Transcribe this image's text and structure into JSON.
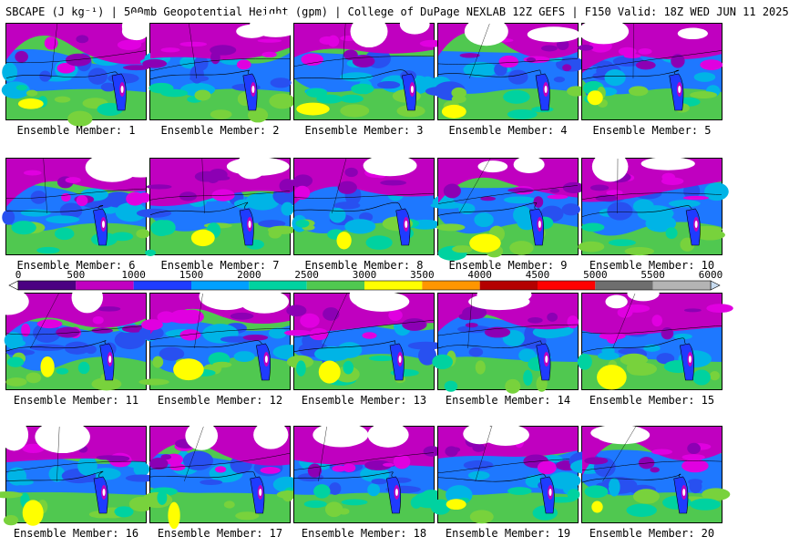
{
  "title": "SBCAPE (J kg⁻¹) | 500mb Geopotential Height (gpm) | College of DuPage NEXLAB 12Z GEFS | F150 Valid: 18Z WED JUN 11 2025",
  "members": [
    {
      "label": "Ensemble Member: 1"
    },
    {
      "label": "Ensemble Member: 2"
    },
    {
      "label": "Ensemble Member: 3"
    },
    {
      "label": "Ensemble Member: 4"
    },
    {
      "label": "Ensemble Member: 5"
    },
    {
      "label": "Ensemble Member: 6"
    },
    {
      "label": "Ensemble Member: 7"
    },
    {
      "label": "Ensemble Member: 8"
    },
    {
      "label": "Ensemble Member: 9"
    },
    {
      "label": "Ensemble Member: 10"
    },
    {
      "label": "Ensemble Member: 11"
    },
    {
      "label": "Ensemble Member: 12"
    },
    {
      "label": "Ensemble Member: 13"
    },
    {
      "label": "Ensemble Member: 14"
    },
    {
      "label": "Ensemble Member: 15"
    },
    {
      "label": "Ensemble Member: 16"
    },
    {
      "label": "Ensemble Member: 17"
    },
    {
      "label": "Ensemble Member: 18"
    },
    {
      "label": "Ensemble Member: 19"
    },
    {
      "label": "Ensemble Member: 20"
    }
  ],
  "colorbar": {
    "ticks": [
      "0",
      "500",
      "1000",
      "1500",
      "2000",
      "2500",
      "3000",
      "3500",
      "4000",
      "4500",
      "5000",
      "5500",
      "6000"
    ],
    "range": [
      0,
      6000
    ],
    "colors": {
      "0-500": "#4b0082",
      "500-1000": "#c000c0",
      "1000-1500": "#1e3cff",
      "1500-2000": "#00a0ff",
      "2000-2500": "#00d2a0",
      "2500-3000": "#50c850",
      "3000-3500": "#ffff00",
      "3500-4000": "#ff9600",
      "4000-4500": "#b40000",
      "4500-5000": "#ff0000",
      "5000-5500": "#6e6e6e",
      "5500-6000": "#b4b4b4"
    }
  }
}
